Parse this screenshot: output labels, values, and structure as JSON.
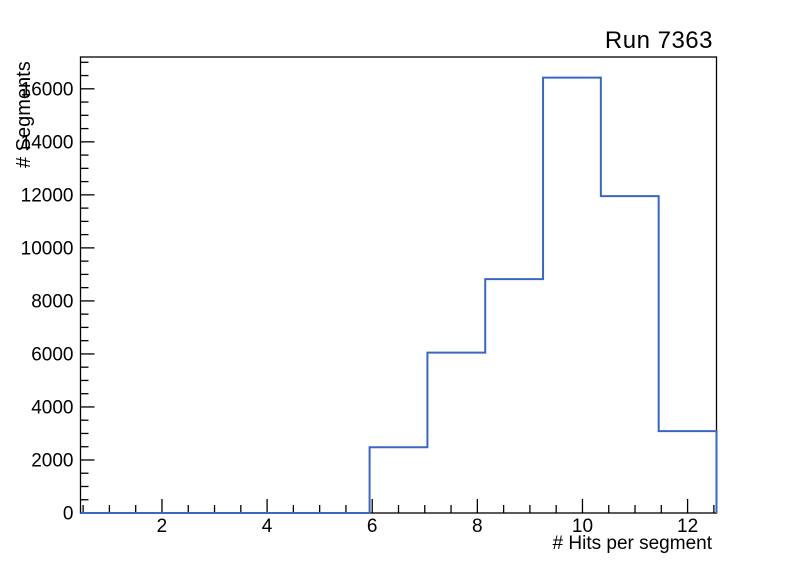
{
  "chart_data": {
    "type": "bar",
    "style": "step-outline-histogram",
    "title": "Run 7363",
    "xlabel": "# Hits per segment",
    "ylabel": "# Segments",
    "bin_edges": [
      0.45,
      1.55,
      2.65,
      3.75,
      4.85,
      5.95,
      7.05,
      8.15,
      9.25,
      10.35,
      11.45,
      12.55
    ],
    "values": [
      0,
      0,
      0,
      0,
      0,
      2480,
      6050,
      8820,
      16420,
      11950,
      3090
    ],
    "xlim": [
      0.45,
      12.55
    ],
    "ylim": [
      0,
      17200
    ],
    "x_major_ticks": [
      2,
      4,
      6,
      8,
      10,
      12
    ],
    "x_minor_step": 0.5,
    "y_major_ticks": [
      0,
      2000,
      4000,
      6000,
      8000,
      10000,
      12000,
      14000,
      16000
    ],
    "y_minor_step": 500,
    "grid": false,
    "legend": "none",
    "line_color": "#3a67c1",
    "axis_color": "#000000",
    "background_color": "#ffffff"
  }
}
